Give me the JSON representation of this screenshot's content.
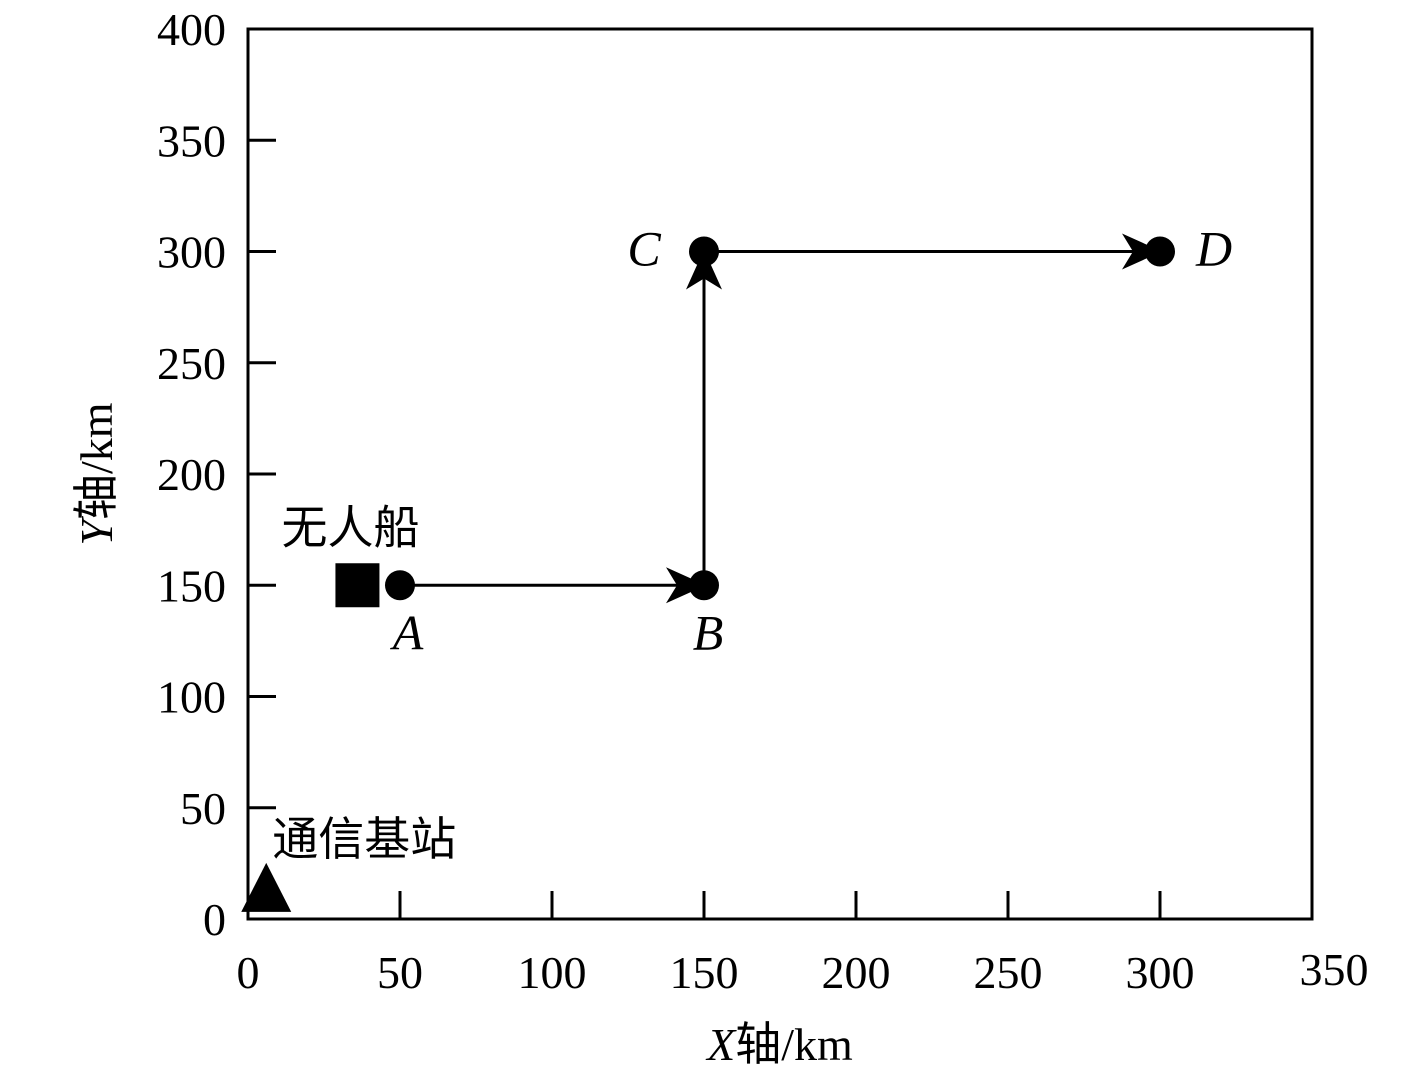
{
  "chart_data": {
    "type": "scatter",
    "xlabel": {
      "var": "X",
      "rest": "轴/km"
    },
    "ylabel": {
      "var": "Y",
      "rest": "轴/km"
    },
    "xlim": [
      0,
      350
    ],
    "ylim": [
      0,
      400
    ],
    "xticks": [
      0,
      50,
      100,
      150,
      200,
      250,
      300,
      350
    ],
    "yticks": [
      0,
      50,
      100,
      150,
      200,
      250,
      300,
      350,
      400
    ],
    "grid": false,
    "waypoints": [
      {
        "label": "A",
        "x": 50,
        "y": 150
      },
      {
        "label": "B",
        "x": 150,
        "y": 150
      },
      {
        "label": "C",
        "x": 150,
        "y": 300
      },
      {
        "label": "D",
        "x": 300,
        "y": 300
      }
    ],
    "path_order": [
      "A",
      "B",
      "C",
      "D"
    ],
    "markers": [
      {
        "label": "无人船",
        "shape": "square",
        "x": 36,
        "y": 150
      },
      {
        "label": "通信基站",
        "shape": "triangle",
        "x": 6,
        "y": 5
      }
    ],
    "colors": {
      "ink": "#000000",
      "background": "#ffffff"
    }
  }
}
